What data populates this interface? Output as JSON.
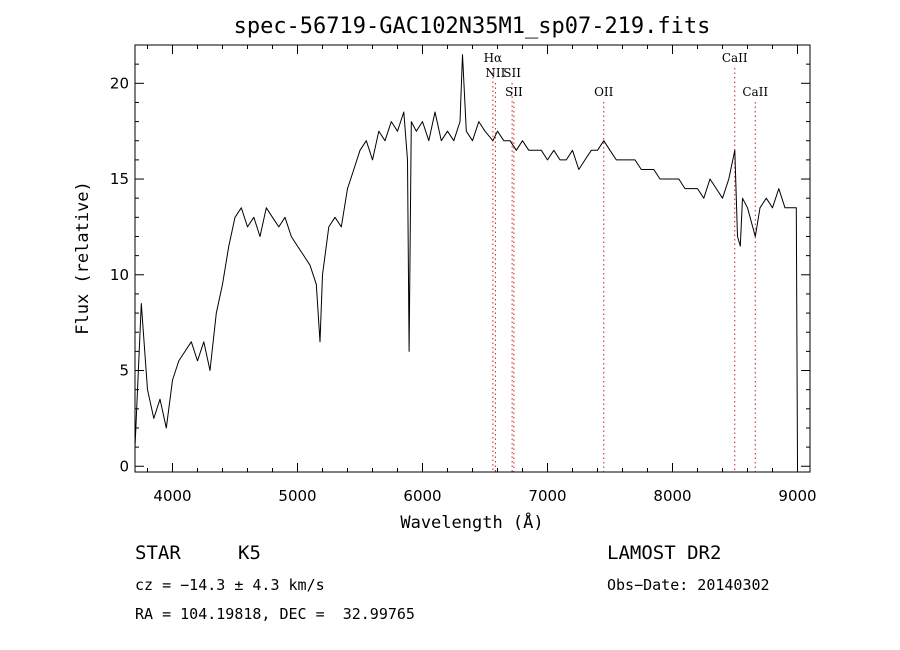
{
  "chart_data": {
    "type": "line",
    "title": "spec-56719-GAC102N35M1_sp07-219.fits",
    "xlabel": "Wavelength (Å)",
    "ylabel": "Flux (relative)",
    "xlim": [
      3700,
      9100
    ],
    "ylim": [
      -0.3,
      22
    ],
    "xticks": [
      4000,
      5000,
      6000,
      7000,
      8000,
      9000
    ],
    "yticks": [
      0,
      5,
      10,
      15,
      20
    ],
    "series": [
      {
        "x": [
          3700,
          3750,
          3800,
          3850,
          3900,
          3950,
          4000,
          4050,
          4100,
          4150,
          4200,
          4250,
          4300,
          4350,
          4400,
          4450,
          4500,
          4550,
          4600,
          4650,
          4700,
          4750,
          4800,
          4850,
          4900,
          4950,
          5000,
          5050,
          5100,
          5150,
          5180,
          5200,
          5250,
          5300,
          5350,
          5400,
          5450,
          5500,
          5550,
          5600,
          5650,
          5700,
          5750,
          5800,
          5850,
          5880,
          5893,
          5910,
          5950,
          6000,
          6050,
          6100,
          6150,
          6200,
          6250,
          6300,
          6320,
          6350,
          6400,
          6450,
          6500,
          6563,
          6600,
          6650,
          6700,
          6750,
          6800,
          6850,
          6900,
          6950,
          7000,
          7050,
          7100,
          7150,
          7200,
          7250,
          7300,
          7350,
          7400,
          7450,
          7500,
          7550,
          7600,
          7650,
          7700,
          7750,
          7800,
          7850,
          7900,
          7950,
          8000,
          8050,
          8100,
          8150,
          8200,
          8250,
          8300,
          8350,
          8400,
          8450,
          8498,
          8520,
          8542,
          8560,
          8600,
          8662,
          8700,
          8750,
          8800,
          8850,
          8900,
          8950,
          8990,
          9000
        ],
        "y": [
          1.0,
          8.5,
          4.0,
          2.5,
          3.5,
          2.0,
          4.5,
          5.5,
          6.0,
          6.5,
          5.5,
          6.5,
          5.0,
          8.0,
          9.5,
          11.5,
          13.0,
          13.5,
          12.5,
          13.0,
          12.0,
          13.5,
          13.0,
          12.5,
          13.0,
          12.0,
          11.5,
          11.0,
          10.5,
          9.5,
          6.5,
          10.0,
          12.5,
          13.0,
          12.5,
          14.5,
          15.5,
          16.5,
          17.0,
          16.0,
          17.5,
          17.0,
          18.0,
          17.5,
          18.5,
          16.0,
          6.0,
          18.0,
          17.5,
          18.0,
          17.0,
          18.5,
          17.0,
          17.5,
          17.0,
          18.0,
          21.5,
          17.5,
          17.0,
          18.0,
          17.5,
          17.0,
          17.5,
          17.0,
          17.0,
          16.5,
          17.0,
          16.5,
          16.5,
          16.5,
          16.0,
          16.5,
          16.0,
          16.0,
          16.5,
          15.5,
          16.0,
          16.5,
          16.5,
          17.0,
          16.5,
          16.0,
          16.0,
          16.0,
          16.0,
          15.5,
          15.5,
          15.5,
          15.0,
          15.0,
          15.0,
          15.0,
          14.5,
          14.5,
          14.5,
          14.0,
          15.0,
          14.5,
          14.0,
          15.0,
          16.5,
          12.0,
          11.5,
          14.0,
          13.5,
          12.0,
          13.5,
          14.0,
          13.5,
          14.5,
          13.5,
          13.5,
          13.5,
          0.0
        ]
      }
    ],
    "lines": [
      {
        "label": "Hα",
        "x": 6563,
        "row": 0
      },
      {
        "label": "NII",
        "x": 6583,
        "row": 1
      },
      {
        "label": "SII",
        "x": 6717,
        "row": 1
      },
      {
        "label": "SII",
        "x": 6731,
        "row": 2
      },
      {
        "label": "OII",
        "x": 7450,
        "row": 2
      },
      {
        "label": "CaII",
        "x": 8498,
        "row": 0
      },
      {
        "label": "CaII",
        "x": 8662,
        "row": 2
      }
    ]
  },
  "info": {
    "class": "STAR",
    "subclass": "K5",
    "survey": "LAMOST DR2",
    "cz": "cz = −14.3 ± 4.3 km/s",
    "obs_date": "Obs−Date: 20140302",
    "coords": "RA = 104.19818, DEC =  32.99765"
  },
  "colors": {
    "spectrum": "#000000",
    "line_markers": "#cc2222"
  }
}
